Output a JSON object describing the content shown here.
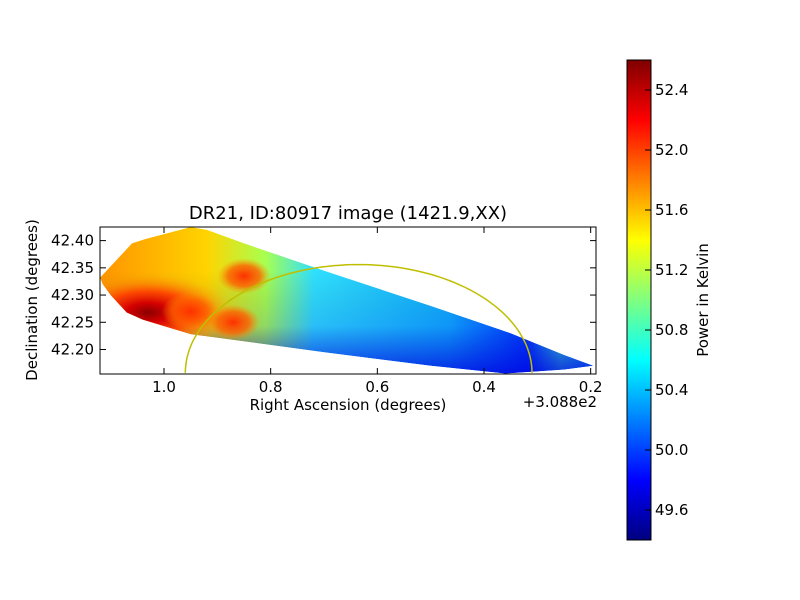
{
  "chart_data": {
    "type": "heatmap",
    "title": "DR21, ID:80917 image (1421.9,XX)",
    "xlabel": "Right Ascension (degrees)",
    "ylabel": "Declination (degrees)",
    "x_offset_label": "+3.088e2",
    "xlim": [
      1.12,
      0.19
    ],
    "ylim": [
      42.155,
      42.425
    ],
    "x_ticks": [
      {
        "value": 1.0,
        "label": "1.0"
      },
      {
        "value": 0.8,
        "label": "0.8"
      },
      {
        "value": 0.6,
        "label": "0.6"
      },
      {
        "value": 0.4,
        "label": "0.4"
      },
      {
        "value": 0.2,
        "label": "0.2"
      }
    ],
    "y_ticks": [
      {
        "value": 42.2,
        "label": "42.20"
      },
      {
        "value": 42.25,
        "label": "42.25"
      },
      {
        "value": 42.3,
        "label": "42.30"
      },
      {
        "value": 42.35,
        "label": "42.35"
      },
      {
        "value": 42.4,
        "label": "42.40"
      }
    ],
    "coverage_polygon": [
      [
        1.12,
        42.332
      ],
      [
        1.06,
        42.395
      ],
      [
        1.035,
        42.403
      ],
      [
        0.95,
        42.425
      ],
      [
        0.92,
        42.42
      ],
      [
        0.85,
        42.395
      ],
      [
        0.7,
        42.345
      ],
      [
        0.5,
        42.28
      ],
      [
        0.35,
        42.23
      ],
      [
        0.25,
        42.19
      ],
      [
        0.195,
        42.17
      ],
      [
        0.25,
        42.163
      ],
      [
        0.36,
        42.156
      ],
      [
        0.5,
        42.17
      ],
      [
        0.7,
        42.195
      ],
      [
        0.95,
        42.228
      ],
      [
        1.04,
        42.255
      ],
      [
        1.07,
        42.268
      ],
      [
        1.1,
        42.3
      ],
      [
        1.115,
        42.32
      ]
    ],
    "colorbar": {
      "label": "Power in Kelvin",
      "range": [
        49.4,
        52.6
      ],
      "colormap": "jet",
      "ticks": [
        {
          "value": 49.6,
          "label": "49.6"
        },
        {
          "value": 50.0,
          "label": "50.0"
        },
        {
          "value": 50.4,
          "label": "50.4"
        },
        {
          "value": 50.8,
          "label": "50.8"
        },
        {
          "value": 51.2,
          "label": "51.2"
        },
        {
          "value": 51.6,
          "label": "51.6"
        },
        {
          "value": 52.0,
          "label": "52.0"
        },
        {
          "value": 52.4,
          "label": "52.4"
        }
      ]
    },
    "emission_peaks": [
      {
        "ra": 1.03,
        "dec": 42.268,
        "value": 52.6
      },
      {
        "ra": 0.95,
        "dec": 42.27,
        "value": 52.1
      },
      {
        "ra": 0.87,
        "dec": 42.25,
        "value": 51.9
      },
      {
        "ra": 0.85,
        "dec": 42.335,
        "value": 51.9
      }
    ],
    "annotation_circle": {
      "center_ra": 0.635,
      "center_dec": 42.157,
      "radius_ra": 0.325,
      "radius_dec": 0.199,
      "color": "#bfbf00"
    },
    "grid": false
  }
}
